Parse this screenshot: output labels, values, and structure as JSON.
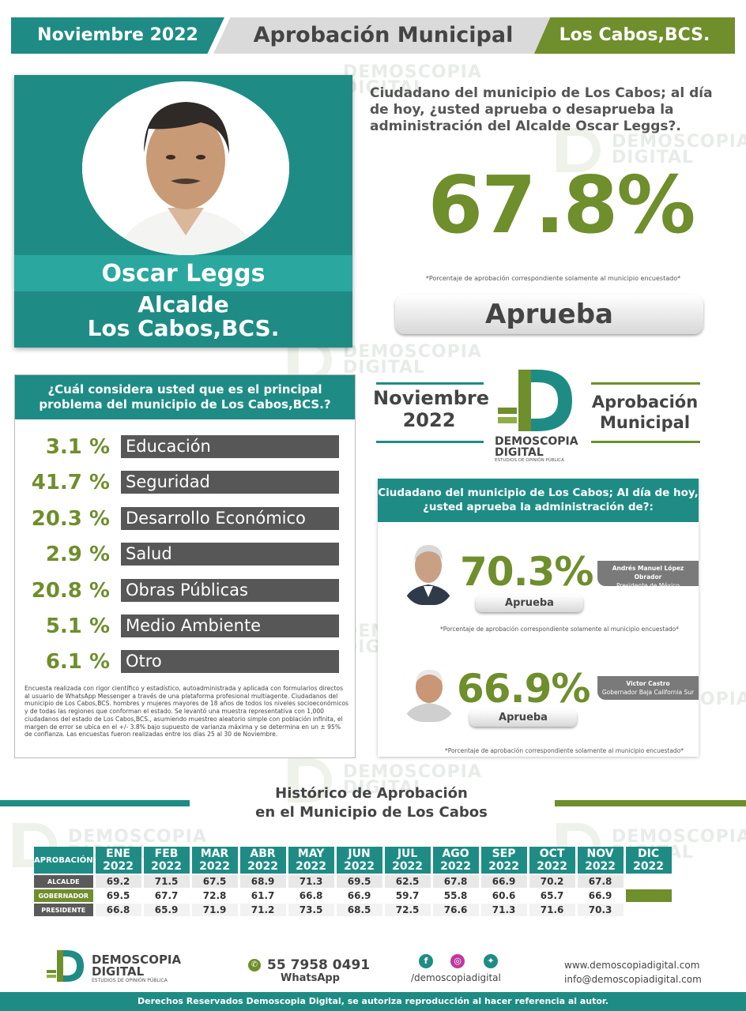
{
  "header": {
    "date": "Noviembre 2022",
    "title": "Aprobación Municipal",
    "location": "Los Cabos,BCS."
  },
  "profile": {
    "name": "Oscar Leggs",
    "role_line1": "Alcalde",
    "role_line2": "Los Cabos,BCS."
  },
  "main_question": "Ciudadano del municipio de Los Cabos; al día de hoy, ¿usted aprueba o desaprueba la administración del Alcalde Oscar Leggs?.",
  "main_approval": {
    "value": "67.8%",
    "note": "*Porcentaje de aprobación correspondiente solamente al municipio encuestado*",
    "label": "Aprueba"
  },
  "problems": {
    "question": "¿Cuál considera usted que es el principal problema del municipio de Los Cabos,BCS.?",
    "items": [
      {
        "pct": "3.1 %",
        "label": "Educación"
      },
      {
        "pct": "41.7 %",
        "label": "Seguridad"
      },
      {
        "pct": "20.3 %",
        "label": "Desarrollo Económico"
      },
      {
        "pct": "2.9 %",
        "label": "Salud"
      },
      {
        "pct": "20.8 %",
        "label": "Obras Públicas"
      },
      {
        "pct": "5.1 %",
        "label": "Medio Ambiente"
      },
      {
        "pct": "6.1 %",
        "label": "Otro"
      }
    ],
    "methodology": "Encuesta realizada con rigor científico y estadístico, autoadministrada y aplicada con formularios directos al usuario de WhatsApp Messenger a través de una plataforma profesional multiagente. Ciudadanos del municipio de Los Cabos,BCS. hombres y mujeres mayores de 18 años de todos los niveles socioeconómicos y de todas las regiones que conforman el estado. Se levantó una muestra representativa con 1,000 ciudadanos del estado de Los Cabos,BCS., asumiendo muestreo aleatorio simple con población infinita, el margen de error se ubica en el +/- 3.8% bajo supuesto de varianza máxima y se determina en un ± 95% de confianza. Las encuestas fueron realizadas entre los días 25 al 30 de Noviembre."
  },
  "brand_block": {
    "date_line1": "Noviembre",
    "date_line2": "2022",
    "title_line1": "Aprobación",
    "title_line2": "Municipal",
    "logo_name1": "DEMOSCOPIA",
    "logo_name2": "DIGITAL",
    "logo_tagline": "ESTUDIOS DE OPINIÓN PÚBLICA"
  },
  "comparison": {
    "question": "Ciudadano del municipio de Los Cabos; Al día de hoy, ¿usted aprueba la administración de?:",
    "people": [
      {
        "pct": "70.3%",
        "label": "Aprueba",
        "name": "Andrés Manuel López Obrador",
        "role": "Presidente de México",
        "note": "*Porcentaje de aprobación correspondiente solamente al municipio encuestado*"
      },
      {
        "pct": "66.9%",
        "label": "Aprueba",
        "name": "Victor Castro",
        "role": "Gobernador Baja California Sur",
        "note": "*Porcentaje de aprobación correspondiente solamente al municipio encuestado*"
      }
    ]
  },
  "history": {
    "title_line1": "Histórico de Aprobación",
    "title_line2": "en el Municipio de Los Cabos",
    "corner": "APROBACIÓN",
    "months": [
      "ENE 2022",
      "FEB 2022",
      "MAR 2022",
      "ABR 2022",
      "MAY 2022",
      "JUN 2022",
      "JUL 2022",
      "AGO 2022",
      "SEP 2022",
      "OCT 2022",
      "NOV 2022",
      "DIC 2022"
    ],
    "rows": [
      {
        "label": "ALCALDE",
        "values": [
          "69.2",
          "71.5",
          "67.5",
          "68.9",
          "71.3",
          "69.5",
          "62.5",
          "67.8",
          "66.9",
          "70.2",
          "67.8",
          ""
        ]
      },
      {
        "label": "GOBERNADOR",
        "values": [
          "69.5",
          "67.7",
          "72.8",
          "61.7",
          "66.8",
          "66.9",
          "59.7",
          "55.8",
          "60.6",
          "65.7",
          "66.9",
          ""
        ]
      },
      {
        "label": "PRESIDENTE",
        "values": [
          "66.8",
          "65.9",
          "71.9",
          "71.2",
          "73.5",
          "68.5",
          "72.5",
          "76.6",
          "71.3",
          "71.6",
          "70.3",
          ""
        ]
      }
    ]
  },
  "footer": {
    "logo_name1": "DEMOSCOPIA",
    "logo_name2": "DIGITAL",
    "logo_tagline": "ESTUDIOS DE OPINIÓN PÚBLICA",
    "phone": "55 7958 0491",
    "whatsapp": "WhatsApp",
    "handle": "/demoscopiadigital",
    "website": "www.demoscopiadigital.com",
    "email": "info@demoscopiadigital.com",
    "copyright": "Derechos Reservados Demoscopia Digital, se autoriza reproducción al hacer referencia al autor."
  },
  "colors": {
    "teal": "#1e8c85",
    "olive": "#6f8e2c",
    "dark_gray": "#575757"
  },
  "icons": [
    "whatsapp-icon",
    "facebook-icon",
    "instagram-icon",
    "twitter-icon"
  ]
}
